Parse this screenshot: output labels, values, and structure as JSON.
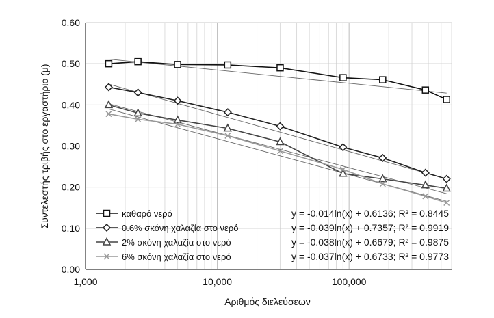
{
  "chart_data": {
    "type": "line",
    "x_scale": "log",
    "xlim": [
      1000,
      600000
    ],
    "ylim": [
      0,
      0.6
    ],
    "xlabel": "Αριθμός διελεύσεων",
    "ylabel": "Συντελεστής τριβής στο εργαστήριο (μ)",
    "x_ticks": [
      {
        "value": 1000,
        "label": "1,000"
      },
      {
        "value": 10000,
        "label": "10,000"
      },
      {
        "value": 100000,
        "label": "100,000"
      }
    ],
    "y_ticks": [
      {
        "value": 0,
        "label": "0.00"
      },
      {
        "value": 0.1,
        "label": "0.10"
      },
      {
        "value": 0.2,
        "label": "0.20"
      },
      {
        "value": 0.3,
        "label": "0.30"
      },
      {
        "value": 0.4,
        "label": "0.40"
      },
      {
        "value": 0.5,
        "label": "0.50"
      },
      {
        "value": 0.6,
        "label": "0.60"
      }
    ],
    "grid": true,
    "legend_position": "bottom-left",
    "series": [
      {
        "name": "καθαρό νερό",
        "marker": "square",
        "color": "#111111",
        "x": [
          1500,
          2500,
          5000,
          12000,
          30000,
          90000,
          180000,
          380000,
          550000
        ],
        "y": [
          0.5,
          0.505,
          0.498,
          0.497,
          0.49,
          0.466,
          0.461,
          0.436,
          0.413
        ],
        "trendline": {
          "a": -0.014,
          "b": 0.6136,
          "equation": "y = -0.014ln(x) + 0.6136; R² = 0.8445"
        }
      },
      {
        "name": "0.6% σκόνη χαλαζία στο νερό",
        "marker": "diamond",
        "color": "#222222",
        "x": [
          1500,
          2500,
          5000,
          12000,
          30000,
          90000,
          180000,
          380000,
          550000
        ],
        "y": [
          0.443,
          0.43,
          0.41,
          0.382,
          0.348,
          0.297,
          0.271,
          0.235,
          0.22
        ],
        "trendline": {
          "a": -0.039,
          "b": 0.7357,
          "equation": "y = -0.039ln(x) + 0.7357; R² = 0.9919"
        }
      },
      {
        "name": "2% σκόνη χαλαζία στο νερό",
        "marker": "triangle",
        "color": "#444444",
        "x": [
          1500,
          2500,
          5000,
          12000,
          30000,
          90000,
          180000,
          380000,
          550000
        ],
        "y": [
          0.4,
          0.38,
          0.363,
          0.343,
          0.31,
          0.233,
          0.22,
          0.205,
          0.197
        ],
        "trendline": {
          "a": -0.038,
          "b": 0.6679,
          "equation": "y = -0.038ln(x) + 0.6679; R² = 0.9875"
        }
      },
      {
        "name": "6% σκόνη χαλαζία στο νερό",
        "marker": "x",
        "color": "#999999",
        "x": [
          1500,
          2500,
          5000,
          12000,
          30000,
          90000,
          180000,
          380000,
          550000
        ],
        "y": [
          0.378,
          0.365,
          0.353,
          0.325,
          0.288,
          0.243,
          0.208,
          0.178,
          0.162
        ],
        "trendline": {
          "a": -0.037,
          "b": 0.6733,
          "equation": "y = -0.037ln(x) + 0.6733; R² = 0.9773"
        }
      }
    ]
  }
}
